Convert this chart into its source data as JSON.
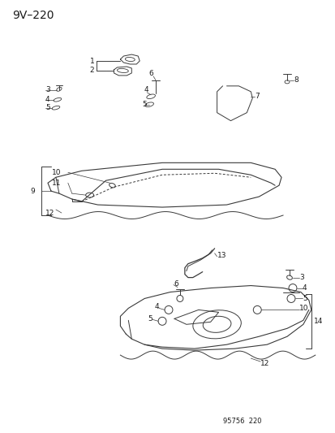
{
  "title": "9V–220",
  "footer": "95756  220",
  "bg_color": "#ffffff",
  "line_color": "#3a3a3a",
  "text_color": "#1a1a1a",
  "figsize": [
    4.14,
    5.33
  ],
  "dpi": 100
}
